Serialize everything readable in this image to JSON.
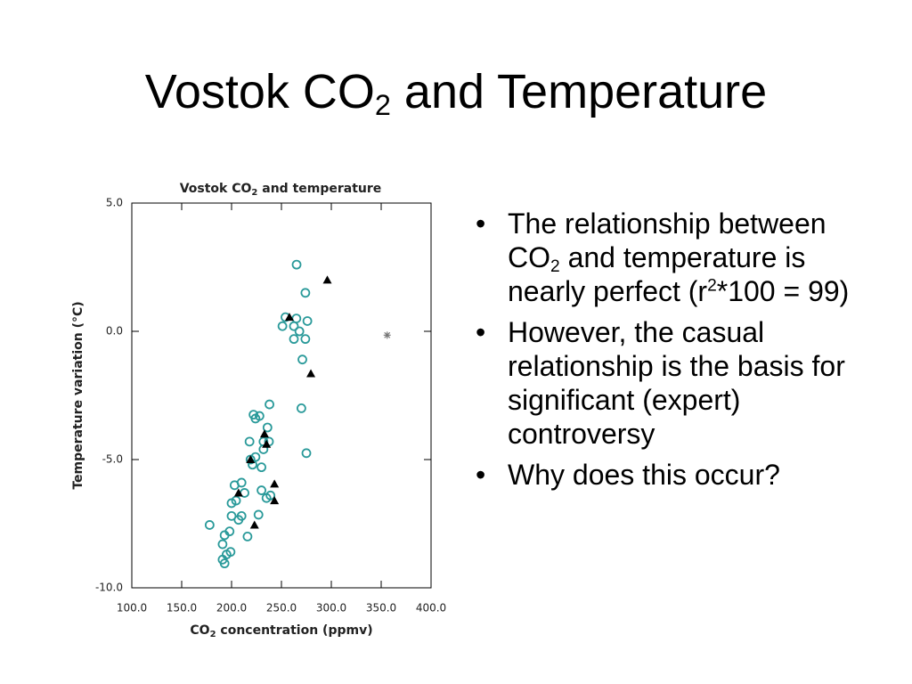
{
  "slide_title": [
    "Vostok CO",
    "2",
    " and Temperature"
  ],
  "bullets": [
    [
      "The relationship between CO",
      "2",
      " and temperature is nearly perfect (r",
      "2",
      "*100 = 99)"
    ],
    [
      "However, the casual relationship is the basis for significant (expert) controversy"
    ],
    [
      "Why does this occur?"
    ]
  ],
  "chart_data": {
    "type": "scatter",
    "title": [
      "Vostok CO",
      "2",
      " and temperature"
    ],
    "x_label": [
      "CO",
      "2",
      " concentration (ppmv)"
    ],
    "y_label": "Temperature variation (°C)",
    "xlim": [
      100,
      400
    ],
    "ylim": [
      -10,
      5
    ],
    "xticks": [
      {
        "value": 100,
        "label": "100.0"
      },
      {
        "value": 150,
        "label": "150.0"
      },
      {
        "value": 200,
        "label": "200.0"
      },
      {
        "value": 250,
        "label": "250.0"
      },
      {
        "value": 300,
        "label": "300.0"
      },
      {
        "value": 350,
        "label": "350.0"
      },
      {
        "value": 400,
        "label": "400.0"
      }
    ],
    "yticks": [
      {
        "value": -10,
        "label": "-10.0"
      },
      {
        "value": -5,
        "label": "-5.0"
      },
      {
        "value": 0,
        "label": "0.0"
      },
      {
        "value": 5,
        "label": "5.0"
      }
    ],
    "series": [
      {
        "color": "#2a9a9a",
        "marker": "circle",
        "x": [
          265.2,
          274,
          254,
          265,
          276,
          251,
          262.5,
          268,
          262.5,
          274,
          271,
          270,
          275,
          238,
          236,
          222,
          228,
          224,
          218,
          232,
          237.5,
          232,
          224,
          219,
          230,
          221,
          210,
          203,
          213,
          230,
          235,
          239,
          200,
          204.5,
          227,
          210,
          207,
          200,
          178,
          198,
          193,
          216,
          191,
          199,
          195,
          191,
          193
        ],
        "values": [
          2.6,
          1.5,
          0.55,
          0.5,
          0.4,
          0.2,
          0.2,
          0.0,
          -0.3,
          -0.3,
          -1.1,
          -3.0,
          -4.75,
          -2.85,
          -3.75,
          -3.25,
          -3.3,
          -3.4,
          -4.3,
          -4.3,
          -4.3,
          -4.6,
          -4.9,
          -5.0,
          -5.3,
          -5.2,
          -5.9,
          -6.0,
          -6.3,
          -6.2,
          -6.5,
          -6.4,
          -6.7,
          -6.6,
          -7.15,
          -7.2,
          -7.35,
          -7.2,
          -7.55,
          -7.8,
          -7.95,
          -8.0,
          -8.3,
          -8.6,
          -8.7,
          -8.9,
          -9.05
        ]
      },
      {
        "color": "#000000",
        "marker": "triangle",
        "x": [
          296,
          258,
          279.5,
          233,
          235,
          219,
          243,
          207,
          243,
          223
        ],
        "values": [
          2.0,
          0.55,
          -1.65,
          -4.0,
          -4.4,
          -5.0,
          -5.95,
          -6.3,
          -6.6,
          -7.55
        ]
      },
      {
        "color": "#777777",
        "marker": "star",
        "x": [
          356
        ],
        "values": [
          -0.15
        ]
      }
    ]
  }
}
